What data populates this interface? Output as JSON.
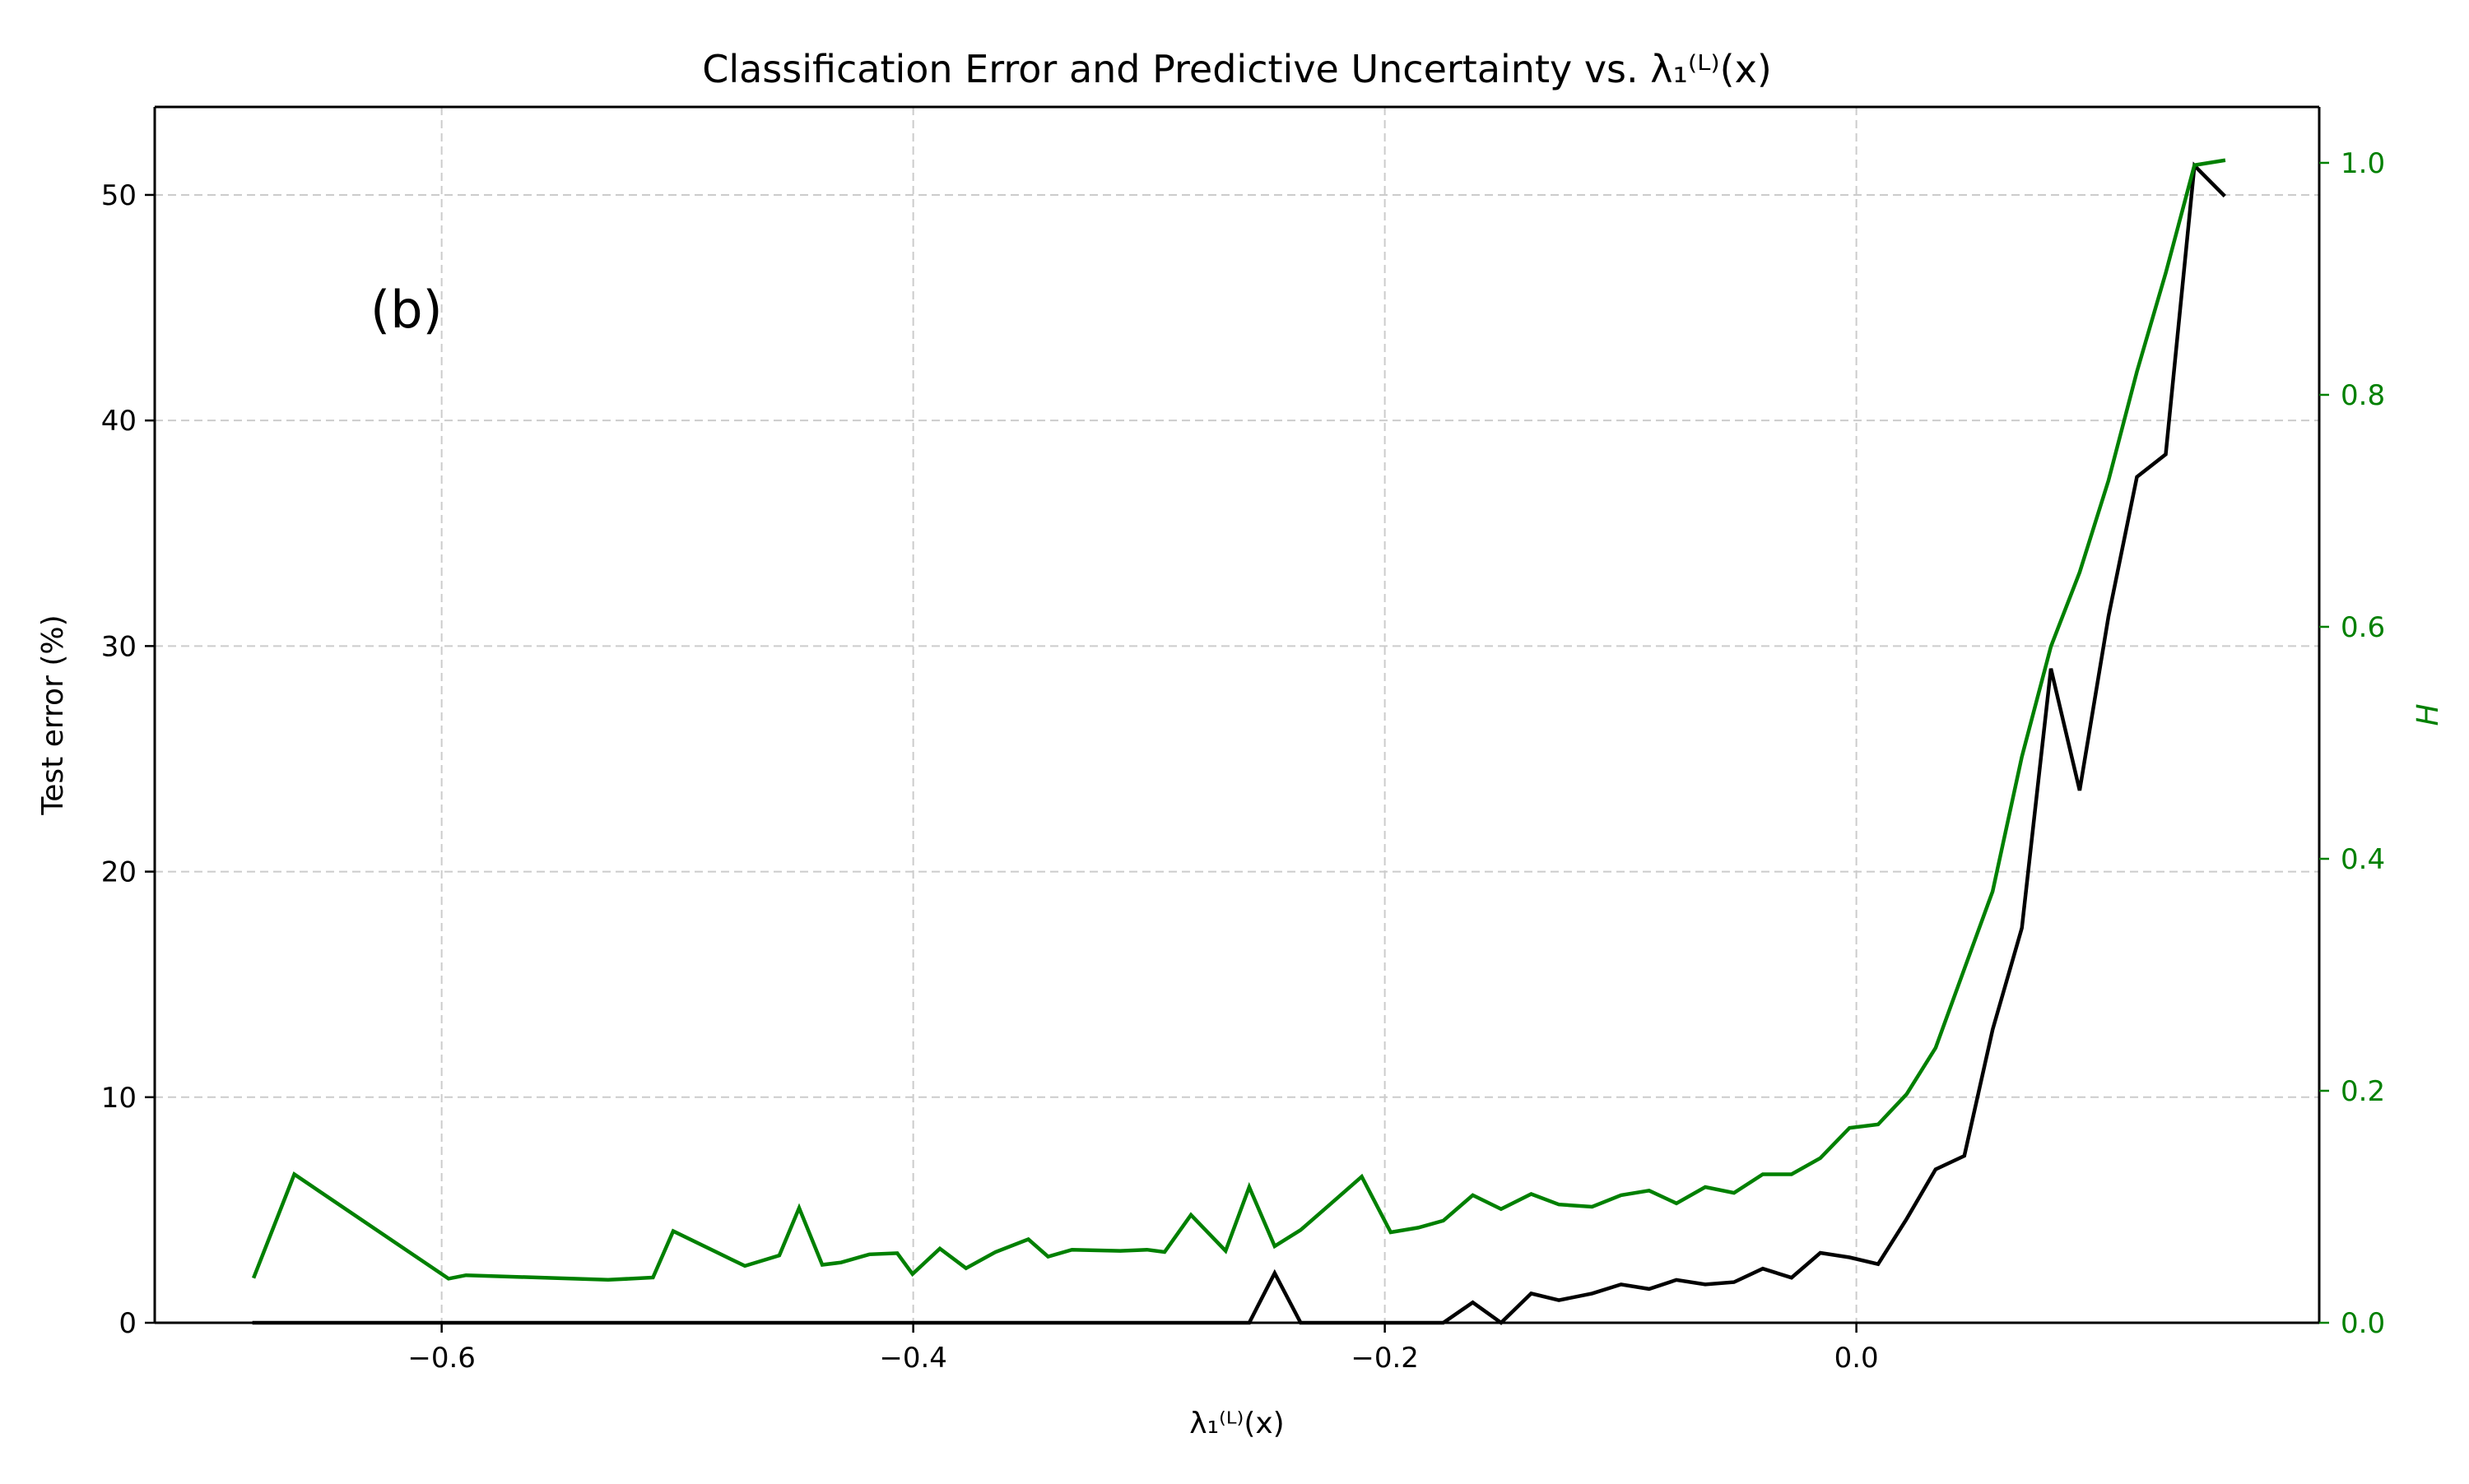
{
  "chart_data": {
    "type": "line",
    "title": "Classification Error and Predictive Uncertainty vs. λ₁⁽ᴸ⁾(x)",
    "annotation": "(b)",
    "xlabel": "λ₁⁽ᴸ⁾(x)",
    "ylabel": "Test error (%)",
    "ylabel_right": "H",
    "xlim": [
      -0.7217,
      0.1963
    ],
    "ylim": [
      0,
      53.9
    ],
    "ylim_right": [
      0,
      1.0482
    ],
    "x_ticks": [
      -0.6,
      -0.4,
      -0.2,
      0.0
    ],
    "x_tick_labels": [
      "−0.6",
      "−0.4",
      "−0.2",
      "0.0"
    ],
    "y_ticks": [
      0,
      10,
      20,
      30,
      40,
      50
    ],
    "y_tick_labels": [
      "0",
      "10",
      "20",
      "30",
      "40",
      "50"
    ],
    "y_ticks_right": [
      0.0,
      0.2,
      0.4,
      0.6,
      0.8,
      1.0
    ],
    "y_tick_labels_right": [
      "0.0",
      "0.2",
      "0.4",
      "0.6",
      "0.8",
      "1.0"
    ],
    "grid": true,
    "colors": {
      "error": "#000000",
      "entropy": "#008000",
      "grid": "#cccccc",
      "axis": "#000000"
    },
    "series": [
      {
        "axis": "left",
        "color": "#000000",
        "x": [
          -0.6795,
          -0.6625,
          -0.5971,
          -0.5294,
          -0.5104,
          -0.5018,
          -0.4714,
          -0.4568,
          -0.4484,
          -0.4306,
          -0.4186,
          -0.4003,
          -0.3887,
          -0.3776,
          -0.3651,
          -0.3512,
          -0.3428,
          -0.3327,
          -0.3122,
          -0.3009,
          -0.2934,
          -0.2822,
          -0.2675,
          -0.2575,
          -0.2467,
          -0.2357,
          -0.2238,
          -0.2098,
          -0.1975,
          -0.1858,
          -0.1752,
          -0.1627,
          -0.1507,
          -0.1379,
          -0.1262,
          -0.1121,
          -0.0998,
          -0.0879,
          -0.0763,
          -0.0641,
          -0.0519,
          -0.0397,
          -0.0275,
          -0.0153,
          -0.0029,
          0.0092,
          0.0213,
          0.0336,
          0.0458,
          0.0578,
          0.0702,
          0.0825,
          0.0947,
          0.1069,
          0.119,
          0.1312,
          0.1434,
          0.1557
        ],
        "y": [
          0,
          0,
          0,
          0,
          0,
          0,
          0,
          0,
          0,
          0,
          0,
          0,
          0,
          0,
          0,
          0,
          0,
          0,
          0,
          0,
          0,
          0,
          0,
          0,
          2.2,
          0,
          0,
          0,
          0,
          0,
          0,
          0.9,
          0,
          1.3,
          1.0,
          1.3,
          1.7,
          1.5,
          1.9,
          1.7,
          1.8,
          2.4,
          2.0,
          3.1,
          2.9,
          2.6,
          4.6,
          6.8,
          7.4,
          13.0,
          17.5,
          29.0,
          23.6,
          31.3,
          37.5,
          38.5,
          51.3,
          50.0
        ]
      },
      {
        "axis": "right",
        "color": "#008000",
        "x": [
          -0.6795,
          -0.6625,
          -0.5971,
          -0.5897,
          -0.5294,
          -0.5104,
          -0.5018,
          -0.4714,
          -0.4568,
          -0.4484,
          -0.4386,
          -0.4306,
          -0.4186,
          -0.4068,
          -0.4003,
          -0.3887,
          -0.3776,
          -0.3651,
          -0.3512,
          -0.3428,
          -0.3327,
          -0.3122,
          -0.3009,
          -0.2934,
          -0.2822,
          -0.2675,
          -0.2575,
          -0.2467,
          -0.2357,
          -0.2238,
          -0.2098,
          -0.1975,
          -0.1858,
          -0.1752,
          -0.1627,
          -0.1507,
          -0.1379,
          -0.1262,
          -0.1121,
          -0.0998,
          -0.0879,
          -0.0763,
          -0.0641,
          -0.0519,
          -0.0397,
          -0.0275,
          -0.0153,
          -0.0029,
          0.0092,
          0.0213,
          0.0336,
          0.0458,
          0.0578,
          0.0702,
          0.0825,
          0.0947,
          0.1069,
          0.119,
          0.1312,
          0.1434,
          0.1557
        ],
        "y": [
          0.04,
          0.128,
          0.038,
          0.041,
          0.037,
          0.039,
          0.079,
          0.049,
          0.058,
          0.099,
          0.05,
          0.052,
          0.059,
          0.06,
          0.042,
          0.064,
          0.047,
          0.061,
          0.072,
          0.057,
          0.063,
          0.062,
          0.063,
          0.061,
          0.093,
          0.062,
          0.117,
          0.066,
          0.08,
          0.101,
          0.126,
          0.078,
          0.082,
          0.088,
          0.11,
          0.098,
          0.111,
          0.102,
          0.1,
          0.11,
          0.114,
          0.103,
          0.117,
          0.112,
          0.128,
          0.128,
          0.142,
          0.168,
          0.171,
          0.197,
          0.237,
          0.305,
          0.372,
          0.488,
          0.583,
          0.647,
          0.726,
          0.82,
          0.905,
          0.998,
          1.002
        ]
      }
    ]
  }
}
